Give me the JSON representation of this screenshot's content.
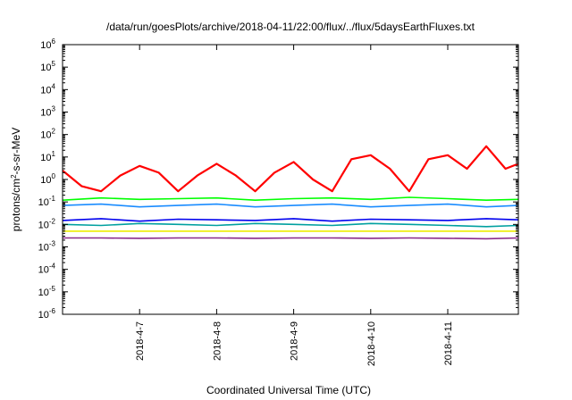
{
  "chart_data": {
    "type": "line",
    "title": "/data/run/goesPlots/archive/2018-04-11/22:00/flux/../flux/5daysEarthFluxes.txt",
    "xlabel": "Coordinated Universal Time (UTC)",
    "ylabel": {
      "base": "protons/cm",
      "sup": "2",
      "rest": "-s-sr-MeV"
    },
    "y_scale": "log",
    "ylim": [
      1e-06,
      1000000
    ],
    "y_ticks": [
      {
        "value": 1e-06,
        "base": "10",
        "exp": "-6"
      },
      {
        "value": 1e-05,
        "base": "10",
        "exp": "-5"
      },
      {
        "value": 0.0001,
        "base": "10",
        "exp": "-4"
      },
      {
        "value": 0.001,
        "base": "10",
        "exp": "-3"
      },
      {
        "value": 0.01,
        "base": "10",
        "exp": "-2"
      },
      {
        "value": 0.1,
        "base": "10",
        "exp": "-1"
      },
      {
        "value": 1,
        "base": "10",
        "exp": "0"
      },
      {
        "value": 10,
        "base": "10",
        "exp": "1"
      },
      {
        "value": 100,
        "base": "10",
        "exp": "2"
      },
      {
        "value": 1000,
        "base": "10",
        "exp": "3"
      },
      {
        "value": 10000,
        "base": "10",
        "exp": "4"
      },
      {
        "value": 100000,
        "base": "10",
        "exp": "5"
      },
      {
        "value": 1000000,
        "base": "10",
        "exp": "6"
      }
    ],
    "xlim": [
      "2018-04-06T00:00",
      "2018-04-11T22:00"
    ],
    "x_ticks": [
      {
        "value": "2018-04-07T00:00",
        "label": "2018-4-7"
      },
      {
        "value": "2018-04-08T00:00",
        "label": "2018-4-8"
      },
      {
        "value": "2018-04-09T00:00",
        "label": "2018-4-9"
      },
      {
        "value": "2018-04-10T00:00",
        "label": "2018-4-10"
      },
      {
        "value": "2018-04-11T00:00",
        "label": "2018-4-11"
      }
    ],
    "grid": false,
    "legend": "none",
    "series": [
      {
        "color": "#ff0000",
        "x": [
          "2018-04-06T00:00",
          "2018-04-06T06:00",
          "2018-04-06T12:00",
          "2018-04-06T18:00",
          "2018-04-07T00:00",
          "2018-04-07T06:00",
          "2018-04-07T12:00",
          "2018-04-07T18:00",
          "2018-04-08T00:00",
          "2018-04-08T06:00",
          "2018-04-08T12:00",
          "2018-04-08T18:00",
          "2018-04-09T00:00",
          "2018-04-09T06:00",
          "2018-04-09T12:00",
          "2018-04-09T18:00",
          "2018-04-10T00:00",
          "2018-04-10T06:00",
          "2018-04-10T12:00",
          "2018-04-10T18:00",
          "2018-04-11T00:00",
          "2018-04-11T06:00",
          "2018-04-11T12:00",
          "2018-04-11T18:00",
          "2018-04-11T22:00"
        ],
        "values": [
          2.5,
          0.5,
          0.3,
          1.5,
          4,
          2,
          0.3,
          1.5,
          5,
          1.5,
          0.3,
          2,
          6,
          1,
          0.3,
          8,
          12,
          3,
          0.3,
          8,
          12,
          3,
          30,
          3,
          5
        ]
      },
      {
        "color": "#00ff00",
        "x": [
          "2018-04-06T00:00",
          "2018-04-06T12:00",
          "2018-04-07T00:00",
          "2018-04-07T12:00",
          "2018-04-08T00:00",
          "2018-04-08T12:00",
          "2018-04-09T00:00",
          "2018-04-09T12:00",
          "2018-04-10T00:00",
          "2018-04-10T12:00",
          "2018-04-11T00:00",
          "2018-04-11T12:00",
          "2018-04-11T22:00"
        ],
        "values": [
          0.12,
          0.15,
          0.13,
          0.14,
          0.15,
          0.12,
          0.14,
          0.15,
          0.13,
          0.16,
          0.14,
          0.12,
          0.13
        ]
      },
      {
        "color": "#1a8cff",
        "x": [
          "2018-04-06T00:00",
          "2018-04-06T12:00",
          "2018-04-07T00:00",
          "2018-04-07T12:00",
          "2018-04-08T00:00",
          "2018-04-08T12:00",
          "2018-04-09T00:00",
          "2018-04-09T12:00",
          "2018-04-10T00:00",
          "2018-04-10T12:00",
          "2018-04-11T00:00",
          "2018-04-11T12:00",
          "2018-04-11T22:00"
        ],
        "values": [
          0.07,
          0.08,
          0.06,
          0.07,
          0.08,
          0.06,
          0.07,
          0.08,
          0.06,
          0.07,
          0.08,
          0.06,
          0.07
        ]
      },
      {
        "color": "#00a0a0",
        "x": [
          "2018-04-06T00:00",
          "2018-04-06T12:00",
          "2018-04-07T00:00",
          "2018-04-07T12:00",
          "2018-04-08T00:00",
          "2018-04-08T12:00",
          "2018-04-09T00:00",
          "2018-04-09T12:00",
          "2018-04-10T00:00",
          "2018-04-10T12:00",
          "2018-04-11T00:00",
          "2018-04-11T12:00",
          "2018-04-11T22:00"
        ],
        "values": [
          0.01,
          0.009,
          0.011,
          0.01,
          0.009,
          0.011,
          0.01,
          0.009,
          0.011,
          0.01,
          0.009,
          0.008,
          0.009
        ]
      },
      {
        "color": "#0000ee",
        "x": [
          "2018-04-06T00:00",
          "2018-04-06T12:00",
          "2018-04-07T00:00",
          "2018-04-07T12:00",
          "2018-04-08T00:00",
          "2018-04-08T12:00",
          "2018-04-09T00:00",
          "2018-04-09T12:00",
          "2018-04-10T00:00",
          "2018-04-10T12:00",
          "2018-04-11T00:00",
          "2018-04-11T12:00",
          "2018-04-11T22:00"
        ],
        "values": [
          0.015,
          0.018,
          0.014,
          0.017,
          0.016,
          0.015,
          0.018,
          0.014,
          0.017,
          0.016,
          0.015,
          0.018,
          0.016
        ]
      },
      {
        "color": "#eeee00",
        "x": [
          "2018-04-06T00:00",
          "2018-04-07T00:00",
          "2018-04-08T00:00",
          "2018-04-09T00:00",
          "2018-04-10T00:00",
          "2018-04-11T00:00",
          "2018-04-11T22:00"
        ],
        "values": [
          0.005,
          0.005,
          0.005,
          0.005,
          0.005,
          0.005,
          0.005
        ]
      },
      {
        "color": "#8b2a8b",
        "x": [
          "2018-04-06T00:00",
          "2018-04-06T12:00",
          "2018-04-07T00:00",
          "2018-04-07T12:00",
          "2018-04-08T00:00",
          "2018-04-08T12:00",
          "2018-04-09T00:00",
          "2018-04-09T12:00",
          "2018-04-10T00:00",
          "2018-04-10T12:00",
          "2018-04-11T00:00",
          "2018-04-11T12:00",
          "2018-04-11T22:00"
        ],
        "values": [
          0.0025,
          0.0025,
          0.0024,
          0.0025,
          0.0025,
          0.0024,
          0.0025,
          0.0025,
          0.0024,
          0.0025,
          0.0024,
          0.0023,
          0.0025
        ]
      }
    ]
  }
}
